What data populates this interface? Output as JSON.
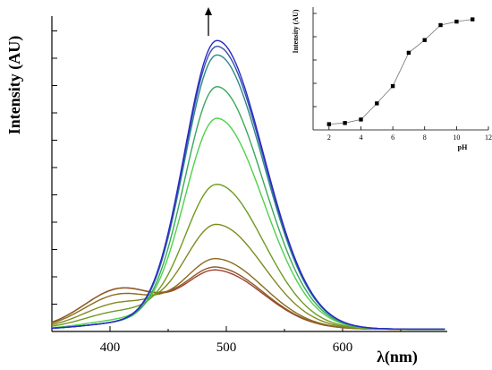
{
  "chart_data": [
    {
      "type": "line",
      "xlabel": "λ(nm)",
      "ylabel": "Intensity (AU)",
      "x_ticks": [
        400,
        500,
        600
      ],
      "xlim": [
        350,
        690
      ],
      "ylim": [
        0,
        1.0
      ],
      "peak_center_nm": 492,
      "annotation": "arrow up above peak (increasing intensity)",
      "series": [
        {
          "color": "#a0412f",
          "peak": 0.2,
          "shoulder": 0.14
        },
        {
          "color": "#8c5a26",
          "peak": 0.21,
          "shoulder": 0.14
        },
        {
          "color": "#8a6d1d",
          "peak": 0.24,
          "shoulder": 0.12
        },
        {
          "color": "#7f8a1f",
          "peak": 0.36,
          "shoulder": 0.09
        },
        {
          "color": "#6f9a22",
          "peak": 0.5,
          "shoulder": 0.06
        },
        {
          "color": "#4fd14a",
          "peak": 0.73,
          "shoulder": 0.03
        },
        {
          "color": "#3aa85a",
          "peak": 0.84,
          "shoulder": 0.02
        },
        {
          "color": "#2a8a8a",
          "peak": 0.95,
          "shoulder": 0.02
        },
        {
          "color": "#3b4fa8",
          "peak": 0.98,
          "shoulder": 0.02
        },
        {
          "color": "#2828c8",
          "peak": 1.0,
          "shoulder": 0.02
        }
      ],
      "grid": false,
      "legend": "none"
    },
    {
      "type": "scatter",
      "xlabel": "pH",
      "ylabel": "Intensity (AU)",
      "x_ticks": [
        2,
        4,
        6,
        8,
        10,
        12
      ],
      "xlim": [
        1,
        12
      ],
      "ylim": [
        0,
        1.05
      ],
      "x": [
        2,
        3,
        4,
        5,
        6,
        7,
        8,
        9,
        10,
        11
      ],
      "y": [
        0.05,
        0.06,
        0.09,
        0.23,
        0.38,
        0.67,
        0.78,
        0.91,
        0.94,
        0.96
      ],
      "connected": true,
      "grid": false,
      "legend": "none"
    }
  ]
}
